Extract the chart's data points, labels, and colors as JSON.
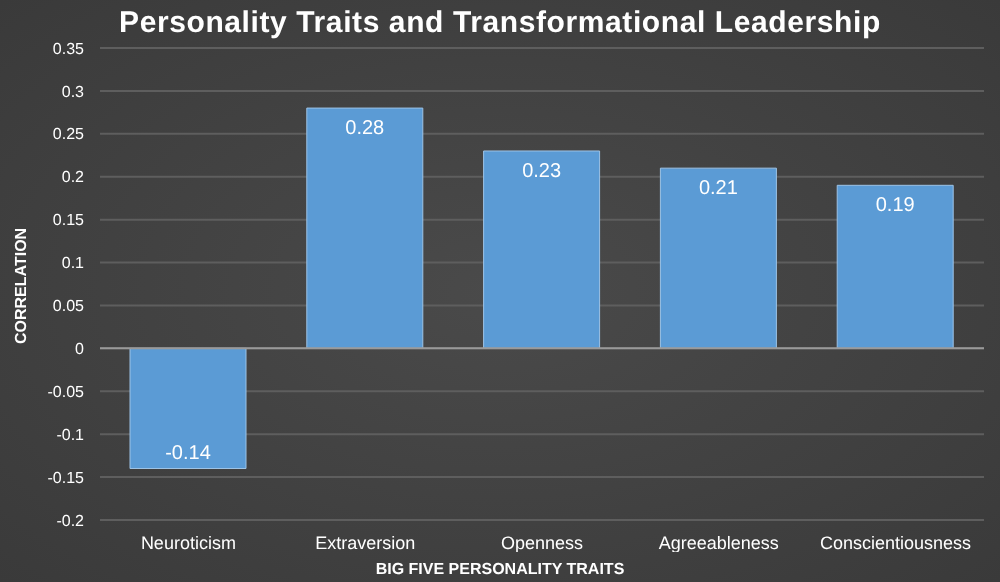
{
  "chart_data": {
    "type": "bar",
    "title": "Personality Traits and Transformational Leadership",
    "xlabel": "BIG FIVE PERSONALITY TRAITS",
    "ylabel": "CORRELATION",
    "categories": [
      "Neuroticism",
      "Extraversion",
      "Openness",
      "Agreeableness",
      "Conscientiousness"
    ],
    "values": [
      -0.14,
      0.28,
      0.23,
      0.21,
      0.19
    ],
    "color": "#5b9bd5",
    "ylim": [
      -0.2,
      0.35
    ],
    "yticks": [
      -0.2,
      -0.15,
      -0.1,
      -0.05,
      0,
      0.05,
      0.1,
      0.15,
      0.2,
      0.25,
      0.3,
      0.35
    ],
    "grid": "y",
    "data_labels": true
  }
}
